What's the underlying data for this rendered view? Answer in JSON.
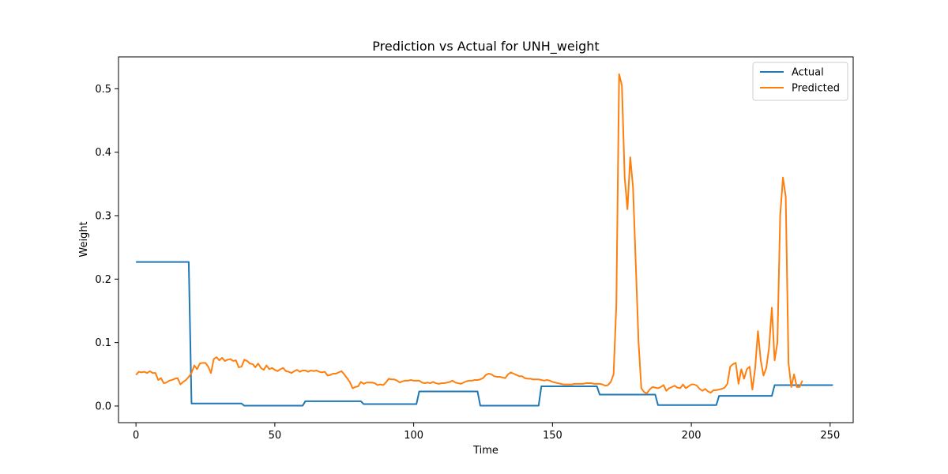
{
  "chart_data": {
    "type": "line",
    "title": "Prediction vs Actual for UNH_weight",
    "xlabel": "Time",
    "ylabel": "Weight",
    "xlim": [
      -6.3,
      258.3
    ],
    "ylim": [
      -0.0262,
      0.5502
    ],
    "xticks": [
      0,
      50,
      100,
      150,
      200,
      250
    ],
    "yticks": [
      0.0,
      0.1,
      0.2,
      0.3,
      0.4,
      0.5
    ],
    "xtick_labels": [
      "0",
      "50",
      "100",
      "150",
      "200",
      "250"
    ],
    "ytick_labels": [
      "0.0",
      "0.1",
      "0.2",
      "0.3",
      "0.4",
      "0.5"
    ],
    "grid": false,
    "legend_position": "top-right",
    "legend": [
      "Actual",
      "Predicted"
    ],
    "series": [
      {
        "name": "Actual",
        "color": "#1f77b4",
        "points": [
          [
            0,
            0.227
          ],
          [
            19,
            0.227
          ],
          [
            20,
            0.004
          ],
          [
            38,
            0.004
          ],
          [
            39,
            0.0005
          ],
          [
            60,
            0.0005
          ],
          [
            61,
            0.0075
          ],
          [
            81,
            0.0075
          ],
          [
            82,
            0.003
          ],
          [
            101,
            0.003
          ],
          [
            102,
            0.023
          ],
          [
            123,
            0.023
          ],
          [
            124,
            0.0005
          ],
          [
            145,
            0.0005
          ],
          [
            146,
            0.031
          ],
          [
            166,
            0.031
          ],
          [
            167,
            0.018
          ],
          [
            187,
            0.018
          ],
          [
            188,
            0.0015
          ],
          [
            209,
            0.0015
          ],
          [
            210,
            0.016
          ],
          [
            229,
            0.016
          ],
          [
            230,
            0.033
          ],
          [
            251,
            0.033
          ]
        ]
      },
      {
        "name": "Predicted",
        "color": "#ff7f0e",
        "points": [
          [
            0,
            0.049
          ],
          [
            1,
            0.054
          ],
          [
            2,
            0.053
          ],
          [
            3,
            0.054
          ],
          [
            4,
            0.052
          ],
          [
            5,
            0.055
          ],
          [
            6,
            0.052
          ],
          [
            7,
            0.052
          ],
          [
            8,
            0.041
          ],
          [
            9,
            0.044
          ],
          [
            10,
            0.036
          ],
          [
            11,
            0.037
          ],
          [
            12,
            0.04
          ],
          [
            13,
            0.041
          ],
          [
            14,
            0.043
          ],
          [
            15,
            0.044
          ],
          [
            16,
            0.034
          ],
          [
            17,
            0.038
          ],
          [
            18,
            0.041
          ],
          [
            19,
            0.046
          ],
          [
            20,
            0.052
          ],
          [
            21,
            0.064
          ],
          [
            22,
            0.058
          ],
          [
            23,
            0.067
          ],
          [
            24,
            0.068
          ],
          [
            25,
            0.068
          ],
          [
            26,
            0.062
          ],
          [
            27,
            0.052
          ],
          [
            28,
            0.074
          ],
          [
            29,
            0.077
          ],
          [
            30,
            0.072
          ],
          [
            31,
            0.076
          ],
          [
            32,
            0.071
          ],
          [
            33,
            0.073
          ],
          [
            34,
            0.074
          ],
          [
            35,
            0.071
          ],
          [
            36,
            0.072
          ],
          [
            37,
            0.061
          ],
          [
            38,
            0.062
          ],
          [
            39,
            0.073
          ],
          [
            40,
            0.071
          ],
          [
            41,
            0.067
          ],
          [
            42,
            0.066
          ],
          [
            43,
            0.061
          ],
          [
            44,
            0.067
          ],
          [
            45,
            0.06
          ],
          [
            46,
            0.057
          ],
          [
            47,
            0.064
          ],
          [
            48,
            0.058
          ],
          [
            49,
            0.06
          ],
          [
            50,
            0.057
          ],
          [
            51,
            0.055
          ],
          [
            52,
            0.058
          ],
          [
            53,
            0.06
          ],
          [
            54,
            0.055
          ],
          [
            55,
            0.054
          ],
          [
            56,
            0.052
          ],
          [
            57,
            0.055
          ],
          [
            58,
            0.057
          ],
          [
            59,
            0.054
          ],
          [
            60,
            0.056
          ],
          [
            61,
            0.056
          ],
          [
            62,
            0.054
          ],
          [
            63,
            0.056
          ],
          [
            64,
            0.055
          ],
          [
            65,
            0.056
          ],
          [
            66,
            0.054
          ],
          [
            67,
            0.053
          ],
          [
            68,
            0.054
          ],
          [
            69,
            0.048
          ],
          [
            70,
            0.049
          ],
          [
            71,
            0.051
          ],
          [
            72,
            0.051
          ],
          [
            73,
            0.053
          ],
          [
            74,
            0.055
          ],
          [
            75,
            0.05
          ],
          [
            76,
            0.044
          ],
          [
            77,
            0.038
          ],
          [
            78,
            0.028
          ],
          [
            79,
            0.03
          ],
          [
            80,
            0.031
          ],
          [
            81,
            0.038
          ],
          [
            82,
            0.035
          ],
          [
            83,
            0.037
          ],
          [
            84,
            0.037
          ],
          [
            85,
            0.037
          ],
          [
            86,
            0.036
          ],
          [
            87,
            0.033
          ],
          [
            88,
            0.034
          ],
          [
            89,
            0.033
          ],
          [
            90,
            0.037
          ],
          [
            91,
            0.043
          ],
          [
            92,
            0.042
          ],
          [
            93,
            0.042
          ],
          [
            94,
            0.04
          ],
          [
            95,
            0.037
          ],
          [
            96,
            0.039
          ],
          [
            97,
            0.04
          ],
          [
            98,
            0.04
          ],
          [
            99,
            0.041
          ],
          [
            100,
            0.04
          ],
          [
            101,
            0.04
          ],
          [
            102,
            0.04
          ],
          [
            103,
            0.037
          ],
          [
            104,
            0.036
          ],
          [
            105,
            0.037
          ],
          [
            106,
            0.036
          ],
          [
            107,
            0.038
          ],
          [
            108,
            0.036
          ],
          [
            109,
            0.035
          ],
          [
            110,
            0.036
          ],
          [
            111,
            0.036
          ],
          [
            112,
            0.037
          ],
          [
            113,
            0.038
          ],
          [
            114,
            0.04
          ],
          [
            115,
            0.037
          ],
          [
            116,
            0.036
          ],
          [
            117,
            0.035
          ],
          [
            118,
            0.037
          ],
          [
            119,
            0.039
          ],
          [
            120,
            0.04
          ],
          [
            121,
            0.04
          ],
          [
            122,
            0.041
          ],
          [
            123,
            0.041
          ],
          [
            124,
            0.042
          ],
          [
            125,
            0.044
          ],
          [
            126,
            0.049
          ],
          [
            127,
            0.051
          ],
          [
            128,
            0.05
          ],
          [
            129,
            0.047
          ],
          [
            130,
            0.046
          ],
          [
            131,
            0.046
          ],
          [
            132,
            0.045
          ],
          [
            133,
            0.044
          ],
          [
            134,
            0.05
          ],
          [
            135,
            0.053
          ],
          [
            136,
            0.051
          ],
          [
            137,
            0.049
          ],
          [
            138,
            0.047
          ],
          [
            139,
            0.047
          ],
          [
            140,
            0.044
          ],
          [
            141,
            0.043
          ],
          [
            142,
            0.043
          ],
          [
            143,
            0.042
          ],
          [
            144,
            0.042
          ],
          [
            145,
            0.042
          ],
          [
            146,
            0.041
          ],
          [
            147,
            0.04
          ],
          [
            148,
            0.041
          ],
          [
            149,
            0.04
          ],
          [
            150,
            0.038
          ],
          [
            151,
            0.037
          ],
          [
            152,
            0.036
          ],
          [
            153,
            0.035
          ],
          [
            154,
            0.034
          ],
          [
            155,
            0.034
          ],
          [
            156,
            0.034
          ],
          [
            157,
            0.034
          ],
          [
            158,
            0.035
          ],
          [
            159,
            0.035
          ],
          [
            160,
            0.035
          ],
          [
            161,
            0.035
          ],
          [
            162,
            0.036
          ],
          [
            163,
            0.036
          ],
          [
            164,
            0.036
          ],
          [
            165,
            0.035
          ],
          [
            166,
            0.035
          ],
          [
            167,
            0.035
          ],
          [
            168,
            0.034
          ],
          [
            169,
            0.032
          ],
          [
            170,
            0.033
          ],
          [
            171,
            0.038
          ],
          [
            172,
            0.05
          ],
          [
            173,
            0.16
          ],
          [
            174,
            0.523
          ],
          [
            175,
            0.505
          ],
          [
            176,
            0.36
          ],
          [
            177,
            0.31
          ],
          [
            178,
            0.392
          ],
          [
            179,
            0.345
          ],
          [
            180,
            0.223
          ],
          [
            181,
            0.1
          ],
          [
            182,
            0.028
          ],
          [
            183,
            0.022
          ],
          [
            184,
            0.02
          ],
          [
            185,
            0.026
          ],
          [
            186,
            0.03
          ],
          [
            187,
            0.029
          ],
          [
            188,
            0.028
          ],
          [
            189,
            0.03
          ],
          [
            190,
            0.033
          ],
          [
            191,
            0.024
          ],
          [
            192,
            0.028
          ],
          [
            193,
            0.03
          ],
          [
            194,
            0.032
          ],
          [
            195,
            0.029
          ],
          [
            196,
            0.028
          ],
          [
            197,
            0.034
          ],
          [
            198,
            0.028
          ],
          [
            199,
            0.031
          ],
          [
            200,
            0.034
          ],
          [
            201,
            0.034
          ],
          [
            202,
            0.032
          ],
          [
            203,
            0.027
          ],
          [
            204,
            0.024
          ],
          [
            205,
            0.027
          ],
          [
            206,
            0.023
          ],
          [
            207,
            0.021
          ],
          [
            208,
            0.025
          ],
          [
            209,
            0.025
          ],
          [
            210,
            0.026
          ],
          [
            211,
            0.027
          ],
          [
            212,
            0.029
          ],
          [
            213,
            0.035
          ],
          [
            214,
            0.062
          ],
          [
            215,
            0.066
          ],
          [
            216,
            0.068
          ],
          [
            217,
            0.035
          ],
          [
            218,
            0.058
          ],
          [
            219,
            0.043
          ],
          [
            220,
            0.058
          ],
          [
            221,
            0.062
          ],
          [
            222,
            0.026
          ],
          [
            223,
            0.06
          ],
          [
            224,
            0.118
          ],
          [
            225,
            0.072
          ],
          [
            226,
            0.048
          ],
          [
            227,
            0.06
          ],
          [
            228,
            0.092
          ],
          [
            229,
            0.155
          ],
          [
            230,
            0.072
          ],
          [
            231,
            0.1
          ],
          [
            232,
            0.3
          ],
          [
            233,
            0.36
          ],
          [
            234,
            0.33
          ],
          [
            235,
            0.068
          ],
          [
            236,
            0.03
          ],
          [
            237,
            0.05
          ],
          [
            238,
            0.03
          ],
          [
            239,
            0.03
          ],
          [
            240,
            0.04
          ]
        ]
      }
    ]
  }
}
